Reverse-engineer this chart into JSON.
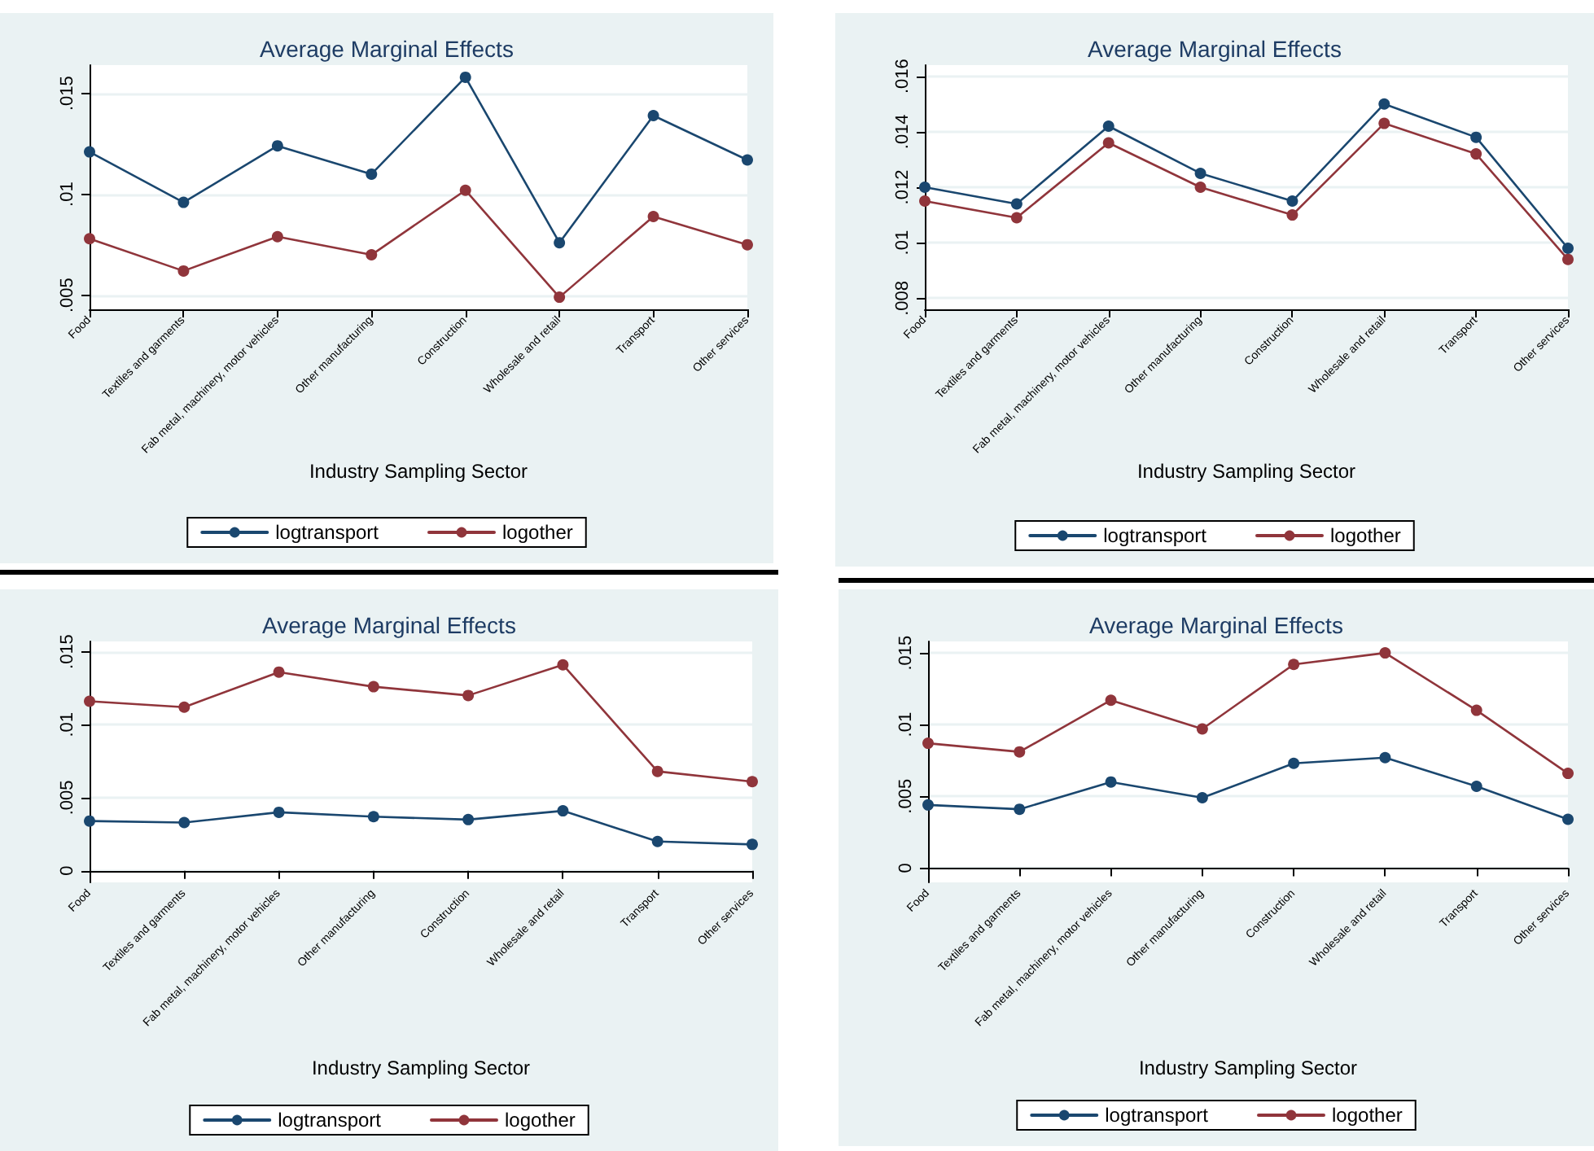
{
  "chart_data": [
    {
      "type": "line",
      "title": "Average Marginal Effects",
      "xlabel": "Industry Sampling Sector",
      "categories": [
        "Food",
        "Textiles and garments",
        "Fab metal, machinery, motor vehicles",
        "Other manufacturing",
        "Construction",
        "Wholesale and retail",
        "Transport",
        "Other services"
      ],
      "series": [
        {
          "name": "logtransport",
          "color": "#1a476f",
          "values": [
            0.0121,
            0.0096,
            0.0124,
            0.011,
            0.0158,
            0.0076,
            0.0139,
            0.0117
          ]
        },
        {
          "name": "logother",
          "color": "#90353b",
          "values": [
            0.0078,
            0.0062,
            0.0079,
            0.007,
            0.0102,
            0.0049,
            0.0089,
            0.0075
          ]
        }
      ],
      "ylim": [
        0.0043,
        0.0164
      ],
      "yticks": [
        {
          "value": 0.005,
          "label": ".005"
        },
        {
          "value": 0.01,
          "label": ".01"
        },
        {
          "value": 0.015,
          "label": ".015"
        }
      ],
      "grid": "y",
      "legend": "bottom",
      "marker": "circle"
    },
    {
      "type": "line",
      "title": "Average Marginal Effects",
      "xlabel": "Industry Sampling Sector",
      "categories": [
        "Food",
        "Textiles and garments",
        "Fab metal, machinery, motor vehicles",
        "Other manufacturing",
        "Construction",
        "Wholesale and retail",
        "Transport",
        "Other services"
      ],
      "series": [
        {
          "name": "logtransport",
          "color": "#1a476f",
          "values": [
            0.012,
            0.0114,
            0.0142,
            0.0125,
            0.0115,
            0.015,
            0.0138,
            0.0098
          ]
        },
        {
          "name": "logother",
          "color": "#90353b",
          "values": [
            0.0115,
            0.0109,
            0.0136,
            0.012,
            0.011,
            0.0143,
            0.0132,
            0.0094
          ]
        }
      ],
      "ylim": [
        0.0076,
        0.0164
      ],
      "yticks": [
        {
          "value": 0.008,
          "label": ".008"
        },
        {
          "value": 0.01,
          "label": ".01"
        },
        {
          "value": 0.012,
          "label": ".012"
        },
        {
          "value": 0.014,
          "label": ".014"
        },
        {
          "value": 0.016,
          "label": ".016"
        }
      ],
      "grid": "y",
      "legend": "bottom",
      "marker": "circle"
    },
    {
      "type": "line",
      "title": "Average Marginal Effects",
      "xlabel": "Industry Sampling Sector",
      "categories": [
        "Food",
        "Textiles and garments",
        "Fab metal, machinery, motor vehicles",
        "Other manufacturing",
        "Construction",
        "Wholesale and retail",
        "Transport",
        "Other services"
      ],
      "series": [
        {
          "name": "logtransport",
          "color": "#1a476f",
          "values": [
            0.0034,
            0.0033,
            0.004,
            0.0037,
            0.0035,
            0.0041,
            0.002,
            0.0018
          ]
        },
        {
          "name": "logother",
          "color": "#90353b",
          "values": [
            0.0116,
            0.0112,
            0.0136,
            0.0126,
            0.012,
            0.0141,
            0.0068,
            0.0061
          ]
        }
      ],
      "ylim": [
        -0.0008,
        0.0157
      ],
      "yticks": [
        0,
        {
          "value": 0.005,
          "label": ".005"
        },
        {
          "value": 0.01,
          "label": ".01"
        },
        {
          "value": 0.015,
          "label": ".015"
        }
      ],
      "grid": "y",
      "legend": "bottom",
      "marker": "circle"
    },
    {
      "type": "line",
      "title": "Average Marginal Effects",
      "xlabel": "Industry Sampling Sector",
      "categories": [
        "Food",
        "Textiles and garments",
        "Fab metal, machinery, motor vehicles",
        "Other manufacturing",
        "Construction",
        "Wholesale and retail",
        "Transport",
        "Other services"
      ],
      "series": [
        {
          "name": "logtransport",
          "color": "#1a476f",
          "values": [
            0.0044,
            0.0041,
            0.006,
            0.0049,
            0.0073,
            0.0077,
            0.0057,
            0.0034
          ]
        },
        {
          "name": "logother",
          "color": "#90353b",
          "values": [
            0.0087,
            0.0081,
            0.0117,
            0.0097,
            0.0142,
            0.015,
            0.011,
            0.0066
          ]
        }
      ],
      "ylim": [
        -0.001,
        0.0158
      ],
      "yticks": [
        0,
        {
          "value": 0.005,
          "label": ".005"
        },
        {
          "value": 0.01,
          "label": ".01"
        },
        {
          "value": 0.015,
          "label": ".015"
        }
      ],
      "grid": "y",
      "legend": "bottom",
      "marker": "circle"
    }
  ]
}
